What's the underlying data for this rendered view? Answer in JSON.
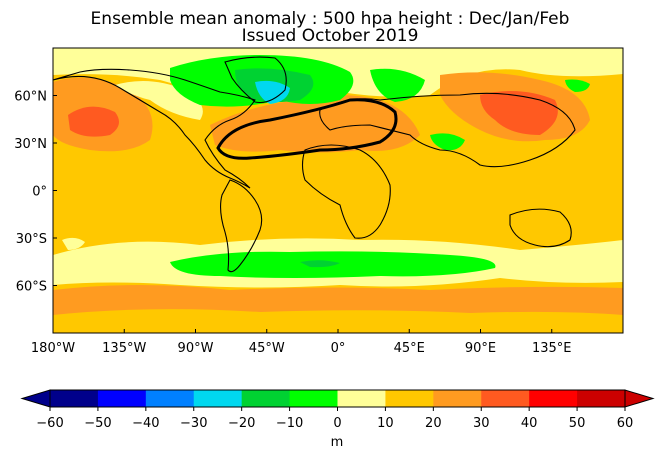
{
  "title": {
    "line1": "Ensemble mean anomaly : 500 hpa height : Dec/Jan/Feb",
    "line2": "Issued October 2019"
  },
  "map": {
    "projection": "plate-carree",
    "lon_range": [
      -180,
      180
    ],
    "lat_range": [
      -90,
      90
    ],
    "x_ticks": [
      {
        "lon": -180,
        "label": "180°W"
      },
      {
        "lon": -135,
        "label": "135°W"
      },
      {
        "lon": -90,
        "label": "90°W"
      },
      {
        "lon": -45,
        "label": "45°W"
      },
      {
        "lon": 0,
        "label": "0°"
      },
      {
        "lon": 45,
        "label": "45°E"
      },
      {
        "lon": 90,
        "label": "90°E"
      },
      {
        "lon": 135,
        "label": "135°E"
      }
    ],
    "y_ticks": [
      {
        "lat": 60,
        "label": "60°N"
      },
      {
        "lat": 30,
        "label": "30°N"
      },
      {
        "lat": 0,
        "label": "0°"
      },
      {
        "lat": -30,
        "label": "30°S"
      },
      {
        "lat": -60,
        "label": "60°S"
      }
    ],
    "background_level": "10 to 20"
  },
  "colorbar": {
    "unit": "m",
    "extend": "both",
    "levels": [
      -60,
      -50,
      -40,
      -30,
      -20,
      -10,
      0,
      10,
      20,
      30,
      40,
      50,
      60
    ],
    "tick_labels": [
      "−60",
      "−50",
      "−40",
      "−30",
      "−20",
      "−10",
      "0",
      "10",
      "20",
      "30",
      "40",
      "50",
      "60"
    ],
    "colors": [
      "#00008b",
      "#0000ff",
      "#0080ff",
      "#00d8ef",
      "#00d232",
      "#00ff00",
      "#ffff99",
      "#ffc800",
      "#ff9b20",
      "#ff5a20",
      "#ff0000",
      "#cc0000"
    ],
    "extend_low_color": "#00008b",
    "extend_high_color": "#cc0000"
  }
}
